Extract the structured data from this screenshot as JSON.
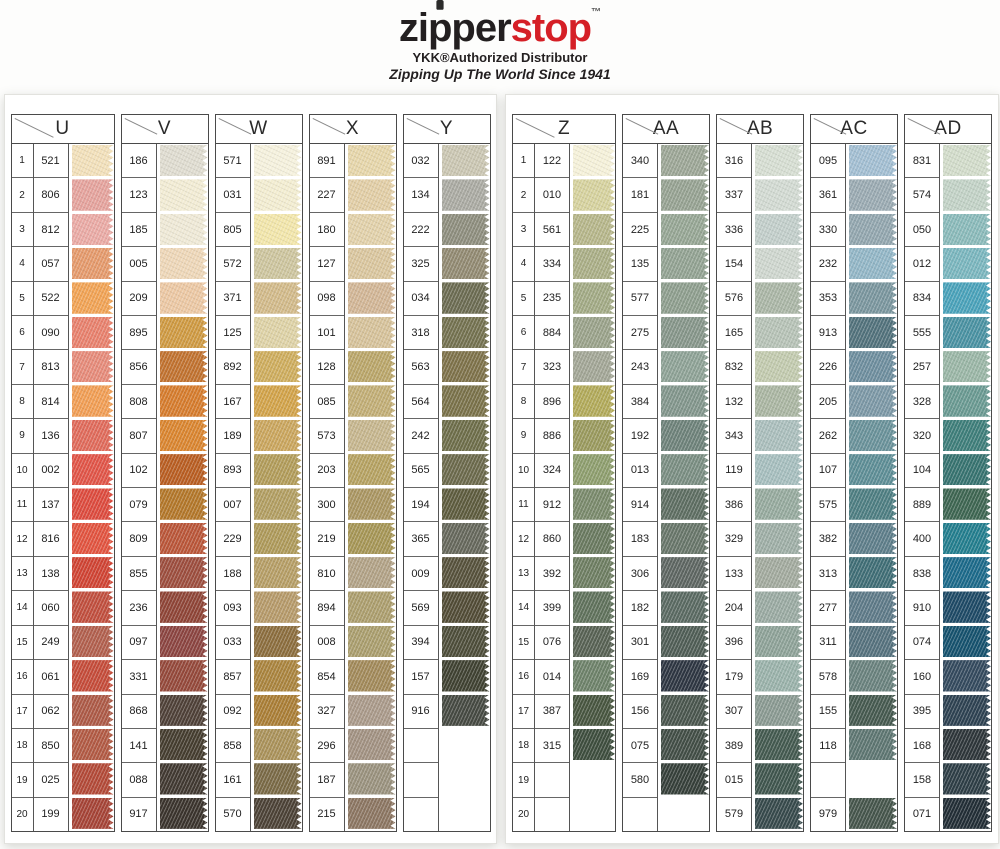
{
  "header": {
    "logo_black": "zipper",
    "logo_red": "stop",
    "logo_tm": "™",
    "subtitle": "YKK®Authorized Distributor",
    "tagline": "Zipping Up The World Since 1941"
  },
  "brand_colors": {
    "logo_black": "#231f20",
    "logo_red": "#d51f26"
  },
  "pages": [
    {
      "columns": [
        {
          "letter": "U",
          "numbered": true,
          "swatches": [
            [
              "521",
              "#f2e0ba"
            ],
            [
              "806",
              "#e5a39d"
            ],
            [
              "812",
              "#eaaaa5"
            ],
            [
              "057",
              "#e59a6c"
            ],
            [
              "522",
              "#f1a355"
            ],
            [
              "090",
              "#e8816d"
            ],
            [
              "813",
              "#e68b7a"
            ],
            [
              "814",
              "#f19e55"
            ],
            [
              "136",
              "#e06b5b"
            ],
            [
              "002",
              "#e15548"
            ],
            [
              "137",
              "#dd4b3e"
            ],
            [
              "816",
              "#e25440"
            ],
            [
              "138",
              "#d04434"
            ],
            [
              "060",
              "#c14f3e"
            ],
            [
              "249",
              "#b2604e"
            ],
            [
              "061",
              "#c54c3a"
            ],
            [
              "062",
              "#ad5a47"
            ],
            [
              "850",
              "#b25a44"
            ],
            [
              "025",
              "#b34a38"
            ],
            [
              "199",
              "#a64437"
            ]
          ]
        },
        {
          "letter": "V",
          "numbered": false,
          "swatches": [
            [
              "186",
              "#dfdcd0"
            ],
            [
              "123",
              "#f2ecd4"
            ],
            [
              "185",
              "#efe9d6"
            ],
            [
              "005",
              "#eed7b8"
            ],
            [
              "209",
              "#ecc8a4"
            ],
            [
              "895",
              "#cf9a42"
            ],
            [
              "856",
              "#c1722f"
            ],
            [
              "808",
              "#d67c2d"
            ],
            [
              "807",
              "#da852f"
            ],
            [
              "102",
              "#b95e22"
            ],
            [
              "079",
              "#b3772a"
            ],
            [
              "809",
              "#ba5639"
            ],
            [
              "855",
              "#9d4e3e"
            ],
            [
              "236",
              "#8f4537"
            ],
            [
              "097",
              "#8c4541"
            ],
            [
              "331",
              "#95493b"
            ],
            [
              "868",
              "#4f4138"
            ],
            [
              "141",
              "#453d2f"
            ],
            [
              "088",
              "#413931"
            ],
            [
              "917",
              "#3b342d"
            ]
          ]
        },
        {
          "letter": "W",
          "numbered": false,
          "swatches": [
            [
              "571",
              "#f5f1dd"
            ],
            [
              "031",
              "#f3edd1"
            ],
            [
              "805",
              "#f2e6ab"
            ],
            [
              "572",
              "#cdc59e"
            ],
            [
              "371",
              "#d2ba8a"
            ],
            [
              "125",
              "#ded2a6"
            ],
            [
              "892",
              "#cead5e"
            ],
            [
              "167",
              "#d2a34a"
            ],
            [
              "189",
              "#caa65e"
            ],
            [
              "893",
              "#b29c5a"
            ],
            [
              "007",
              "#b29e62"
            ],
            [
              "229",
              "#ae9a5a"
            ],
            [
              "188",
              "#b69e66"
            ],
            [
              "093",
              "#b69a6a"
            ],
            [
              "033",
              "#8c6e3e"
            ],
            [
              "857",
              "#aa843e"
            ],
            [
              "092",
              "#aa7e36"
            ],
            [
              "858",
              "#aa925a"
            ],
            [
              "161",
              "#7a6a46"
            ],
            [
              "570",
              "#4c4236"
            ]
          ]
        },
        {
          "letter": "X",
          "numbered": false,
          "swatches": [
            [
              "891",
              "#e6d6aa"
            ],
            [
              "227",
              "#e2cea6"
            ],
            [
              "180",
              "#e2d1aa"
            ],
            [
              "127",
              "#dac69e"
            ],
            [
              "098",
              "#d2b696"
            ],
            [
              "101",
              "#d6c29a"
            ],
            [
              "128",
              "#baa66a"
            ],
            [
              "085",
              "#c2ae76"
            ],
            [
              "573",
              "#c6b68e"
            ],
            [
              "203",
              "#b6a262"
            ],
            [
              "300",
              "#aa9662"
            ],
            [
              "219",
              "#a69656"
            ],
            [
              "810",
              "#b2a286"
            ],
            [
              "894",
              "#ac9e6e"
            ],
            [
              "008",
              "#aa9e6e"
            ],
            [
              "854",
              "#a28a5a"
            ],
            [
              "327",
              "#aa9a8a"
            ],
            [
              "296",
              "#a29282"
            ],
            [
              "187",
              "#9a927e"
            ],
            [
              "215",
              "#8c7662"
            ]
          ]
        },
        {
          "letter": "Y",
          "numbered": false,
          "swatches": [
            [
              "032",
              "#cac6b2"
            ],
            [
              "134",
              "#aaaaa2"
            ],
            [
              "222",
              "#8e8e7e"
            ],
            [
              "325",
              "#928a72"
            ],
            [
              "034",
              "#6c6c52"
            ],
            [
              "318",
              "#747250"
            ],
            [
              "563",
              "#7e724a"
            ],
            [
              "564",
              "#7a724a"
            ],
            [
              "242",
              "#6e6e4a"
            ],
            [
              "565",
              "#6c6a4c"
            ],
            [
              "194",
              "#5e5c3e"
            ],
            [
              "365",
              "#66685c"
            ],
            [
              "009",
              "#57523c"
            ],
            [
              "569",
              "#524c36"
            ],
            [
              "394",
              "#4e4e3a"
            ],
            [
              "157",
              "#404232"
            ],
            [
              "916",
              "#464a42"
            ],
            [
              "",
              null
            ],
            [
              "",
              null
            ],
            [
              "",
              null
            ]
          ]
        }
      ]
    },
    {
      "columns": [
        {
          "letter": "Z",
          "numbered": true,
          "swatches": [
            [
              "122",
              "#f5f1d9"
            ],
            [
              "010",
              "#d6d29e"
            ],
            [
              "561",
              "#b6b68a"
            ],
            [
              "334",
              "#aaae86"
            ],
            [
              "235",
              "#a2aa85"
            ],
            [
              "884",
              "#9aa28a"
            ],
            [
              "323",
              "#a2a696"
            ],
            [
              "896",
              "#b2aa5a"
            ],
            [
              "886",
              "#9a9a5e"
            ],
            [
              "324",
              "#8e9e6e"
            ],
            [
              "912",
              "#7a8a6c"
            ],
            [
              "860",
              "#6a7a60"
            ],
            [
              "392",
              "#6e7e62"
            ],
            [
              "399",
              "#60725c"
            ],
            [
              "076",
              "#586254"
            ],
            [
              "014",
              "#6e826a"
            ],
            [
              "387",
              "#485640"
            ],
            [
              "315",
              "#3e4e3e"
            ],
            [
              "",
              null
            ],
            [
              "",
              null
            ]
          ]
        },
        {
          "letter": "AA",
          "numbered": false,
          "swatches": [
            [
              "340",
              "#9ca696"
            ],
            [
              "181",
              "#96a292"
            ],
            [
              "225",
              "#96a694"
            ],
            [
              "135",
              "#92a292"
            ],
            [
              "577",
              "#8e9e8e"
            ],
            [
              "275",
              "#86968a"
            ],
            [
              "243",
              "#8ea296"
            ],
            [
              "384",
              "#82968c"
            ],
            [
              "192",
              "#6e827a"
            ],
            [
              "013",
              "#7a8e82"
            ],
            [
              "914",
              "#5e6e62"
            ],
            [
              "183",
              "#68766a"
            ],
            [
              "306",
              "#5e6662"
            ],
            [
              "182",
              "#5a6a62"
            ],
            [
              "301",
              "#505e56"
            ],
            [
              "169",
              "#2e3642"
            ],
            [
              "156",
              "#4a564e"
            ],
            [
              "075",
              "#424e46"
            ],
            [
              "580",
              "#36403a"
            ],
            [
              "",
              null
            ]
          ]
        },
        {
          "letter": "AB",
          "numbered": false,
          "swatches": [
            [
              "316",
              "#d6ded2"
            ],
            [
              "337",
              "#d2dad2"
            ],
            [
              "336",
              "#c2ceca"
            ],
            [
              "154",
              "#ced6ce"
            ],
            [
              "576",
              "#aab6a6"
            ],
            [
              "165",
              "#b6c2b6"
            ],
            [
              "832",
              "#c2caae"
            ],
            [
              "132",
              "#aab6a2"
            ],
            [
              "343",
              "#aabebc"
            ],
            [
              "119",
              "#a6bebe"
            ],
            [
              "386",
              "#96aa9e"
            ],
            [
              "329",
              "#9eaea6"
            ],
            [
              "133",
              "#a2aa9e"
            ],
            [
              "204",
              "#9aaaa2"
            ],
            [
              "396",
              "#8ea298"
            ],
            [
              "179",
              "#9ab2aa"
            ],
            [
              "307",
              "#8a9a92"
            ],
            [
              "389",
              "#445a50"
            ],
            [
              "015",
              "#40564e"
            ],
            [
              "579",
              "#374a4c"
            ]
          ]
        },
        {
          "letter": "AC",
          "numbered": false,
          "swatches": [
            [
              "095",
              "#a2bed2"
            ],
            [
              "361",
              "#9aaab2"
            ],
            [
              "330",
              "#92a6ae"
            ],
            [
              "232",
              "#92b6c6"
            ],
            [
              "353",
              "#7a969e"
            ],
            [
              "913",
              "#52727c"
            ],
            [
              "226",
              "#6e8e9e"
            ],
            [
              "205",
              "#7c98a6"
            ],
            [
              "262",
              "#6a929a"
            ],
            [
              "107",
              "#5e8e96"
            ],
            [
              "575",
              "#4e7e82"
            ],
            [
              "382",
              "#5e7e8a"
            ],
            [
              "313",
              "#406e76"
            ],
            [
              "277",
              "#5e7a88"
            ],
            [
              "311",
              "#56727e"
            ],
            [
              "578",
              "#6a827e"
            ],
            [
              "155",
              "#465a50"
            ],
            [
              "118",
              "#5e7672"
            ],
            [
              "",
              null
            ],
            [
              "979",
              "#46564c"
            ]
          ]
        },
        {
          "letter": "AD",
          "numbered": false,
          "swatches": [
            [
              "831",
              "#d2dcca"
            ],
            [
              "574",
              "#c2d2c6"
            ],
            [
              "050",
              "#8ababa"
            ],
            [
              "012",
              "#7ab6be"
            ],
            [
              "834",
              "#4aa2ba"
            ],
            [
              "555",
              "#4a92a2"
            ],
            [
              "257",
              "#9ab6a6"
            ],
            [
              "328",
              "#6a9a92"
            ],
            [
              "320",
              "#3e7e7a"
            ],
            [
              "104",
              "#377370"
            ],
            [
              "889",
              "#3e6652"
            ],
            [
              "400",
              "#237e8e"
            ],
            [
              "838",
              "#1c6a8a"
            ],
            [
              "910",
              "#1e4a66"
            ],
            [
              "074",
              "#16526e"
            ],
            [
              "160",
              "#344a5e"
            ],
            [
              "395",
              "#2e4252"
            ],
            [
              "168",
              "#2e363a"
            ],
            [
              "158",
              "#2e3e46"
            ],
            [
              "071",
              "#222e36"
            ]
          ]
        }
      ]
    }
  ]
}
